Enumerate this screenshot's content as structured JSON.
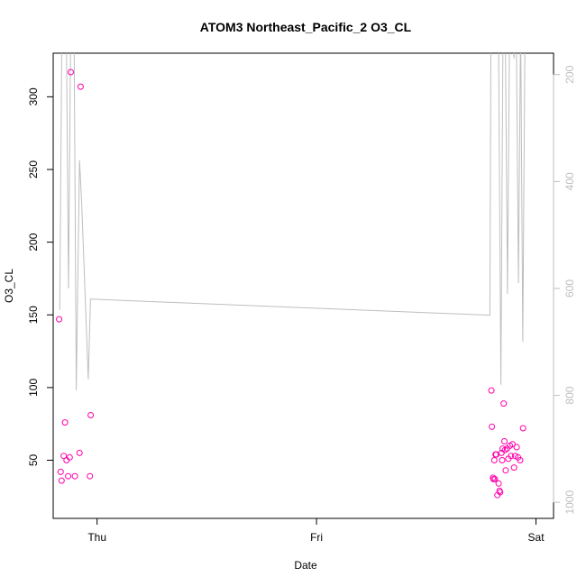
{
  "chart_data": {
    "type": "scatter",
    "title": "ATOM3 Northeast_Pacific_2 O3_CL",
    "xlabel": "Date",
    "ylabel": "O3_CL",
    "x_unit": "days since Thursday 00:00",
    "x_ticks": [
      {
        "value": 0,
        "label": "Thu"
      },
      {
        "value": 1,
        "label": "Fri"
      },
      {
        "value": 2,
        "label": "Sat"
      }
    ],
    "ylim": [
      10,
      330
    ],
    "y_ticks": [
      50,
      100,
      150,
      200,
      250,
      300
    ],
    "y2_label": "",
    "y2lim": [
      1030,
      160
    ],
    "y2_reversed": true,
    "y2_ticks": [
      200,
      400,
      600,
      800,
      1000
    ],
    "xlim": [
      -0.2,
      2.08
    ],
    "grid": false,
    "legend": "none",
    "colors": {
      "points": "#ff00aa",
      "line": "#bebebe",
      "axis": "#000000",
      "right_axis": "#bebebe"
    },
    "series": [
      {
        "kind": "points",
        "x": [
          -0.173,
          -0.166,
          -0.162,
          -0.152,
          -0.146,
          -0.139,
          -0.132,
          -0.125,
          -0.12,
          -0.101,
          -0.08,
          -0.075,
          -0.029,
          -0.033,
          1.797,
          1.799,
          1.804,
          1.807,
          1.81,
          1.813,
          1.816,
          1.819,
          1.824,
          1.83,
          1.834,
          1.837,
          1.843,
          1.846,
          1.848,
          1.853,
          1.856,
          1.859,
          1.862,
          1.868,
          1.874,
          1.881,
          1.886,
          1.893,
          1.9,
          1.905,
          1.912,
          1.918,
          1.928,
          1.941
        ],
        "y": [
          147,
          42,
          36,
          53,
          76,
          50,
          39,
          52,
          317,
          39,
          55,
          307,
          81,
          39,
          98,
          73,
          38,
          37,
          50,
          37,
          54,
          54,
          26,
          34,
          29,
          28,
          55,
          50,
          58,
          89,
          63,
          57,
          43,
          58,
          51,
          60,
          53,
          61,
          45,
          53,
          59,
          52,
          50,
          72
        ]
      },
      {
        "kind": "line",
        "x": [
          -0.17,
          -0.16,
          -0.15,
          -0.14,
          -0.13,
          -0.12,
          -0.105,
          -0.095,
          -0.08,
          -0.07,
          -0.05,
          -0.04,
          -0.03,
          1.79,
          1.795,
          1.8,
          1.81,
          1.82,
          1.83,
          1.84,
          1.85,
          1.86,
          1.87,
          1.88,
          1.89,
          1.9,
          1.91,
          1.92,
          1.93,
          1.94,
          1.95
        ],
        "y": [
          640,
          100,
          100,
          120,
          600,
          100,
          100,
          790,
          360,
          440,
          660,
          770,
          620,
          650,
          100,
          100,
          130,
          150,
          160,
          780,
          100,
          100,
          610,
          100,
          100,
          170,
          100,
          590,
          100,
          700,
          100
        ]
      }
    ]
  }
}
